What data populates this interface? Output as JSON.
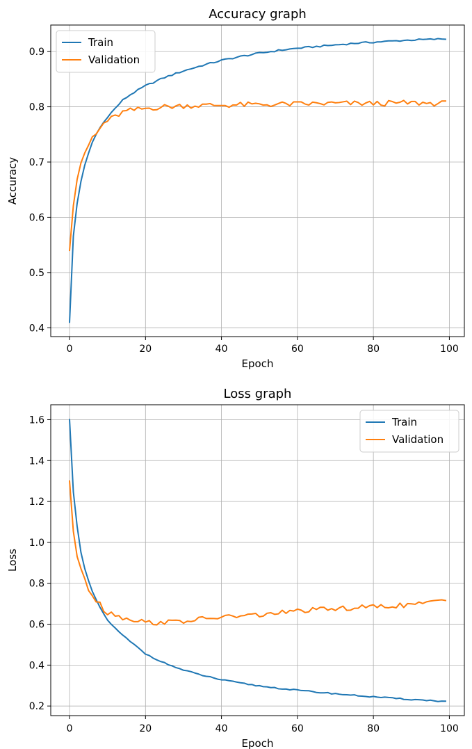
{
  "chart_data": [
    {
      "type": "line",
      "title": "Accuracy graph",
      "xlabel": "Epoch",
      "ylabel": "Accuracy",
      "xlim": [
        -4.95,
        103.95
      ],
      "ylim": [
        0.384,
        0.948
      ],
      "xticks": [
        0,
        20,
        40,
        60,
        80,
        100
      ],
      "yticks": [
        0.4,
        0.5,
        0.6,
        0.7,
        0.8,
        0.9
      ],
      "xtick_labels": [
        "0",
        "20",
        "40",
        "60",
        "80",
        "100"
      ],
      "ytick_labels": [
        "0.4",
        "0.5",
        "0.6",
        "0.7",
        "0.8",
        "0.9"
      ],
      "grid": true,
      "legend": "upper-left",
      "series": [
        {
          "name": "Train",
          "color": "#1f77b4",
          "anchors": [
            [
              0,
              0.41
            ],
            [
              1,
              0.565
            ],
            [
              2,
              0.625
            ],
            [
              3,
              0.665
            ],
            [
              4,
              0.695
            ],
            [
              5,
              0.715
            ],
            [
              6,
              0.735
            ],
            [
              7,
              0.75
            ],
            [
              8,
              0.762
            ],
            [
              9,
              0.772
            ],
            [
              10,
              0.782
            ],
            [
              12,
              0.797
            ],
            [
              14,
              0.812
            ],
            [
              16,
              0.822
            ],
            [
              18,
              0.83
            ],
            [
              20,
              0.838
            ],
            [
              25,
              0.853
            ],
            [
              30,
              0.865
            ],
            [
              35,
              0.875
            ],
            [
              40,
              0.884
            ],
            [
              45,
              0.891
            ],
            [
              50,
              0.897
            ],
            [
              55,
              0.902
            ],
            [
              60,
              0.906
            ],
            [
              65,
              0.909
            ],
            [
              70,
              0.912
            ],
            [
              75,
              0.915
            ],
            [
              80,
              0.917
            ],
            [
              85,
              0.919
            ],
            [
              90,
              0.921
            ],
            [
              95,
              0.922
            ],
            [
              99,
              0.923
            ]
          ],
          "noise": 0.0015
        },
        {
          "name": "Validation",
          "color": "#ff7f0e",
          "anchors": [
            [
              0,
              0.54
            ],
            [
              1,
              0.625
            ],
            [
              2,
              0.67
            ],
            [
              3,
              0.7
            ],
            [
              4,
              0.712
            ],
            [
              5,
              0.73
            ],
            [
              6,
              0.745
            ],
            [
              7,
              0.75
            ],
            [
              8,
              0.76
            ],
            [
              9,
              0.77
            ],
            [
              10,
              0.775
            ],
            [
              12,
              0.782
            ],
            [
              14,
              0.79
            ],
            [
              16,
              0.793
            ],
            [
              20,
              0.797
            ],
            [
              25,
              0.8
            ],
            [
              30,
              0.802
            ],
            [
              40,
              0.803
            ],
            [
              50,
              0.804
            ],
            [
              60,
              0.805
            ],
            [
              70,
              0.806
            ],
            [
              80,
              0.806
            ],
            [
              90,
              0.807
            ],
            [
              99,
              0.806
            ]
          ],
          "noise": 0.005
        }
      ]
    },
    {
      "type": "line",
      "title": "Loss graph",
      "xlabel": "Epoch",
      "ylabel": "Loss",
      "xlim": [
        -4.95,
        103.95
      ],
      "ylim": [
        0.153,
        1.673
      ],
      "xticks": [
        0,
        20,
        40,
        60,
        80,
        100
      ],
      "yticks": [
        0.2,
        0.4,
        0.6,
        0.8,
        1.0,
        1.2,
        1.4,
        1.6
      ],
      "xtick_labels": [
        "0",
        "20",
        "40",
        "60",
        "80",
        "100"
      ],
      "ytick_labels": [
        "0.2",
        "0.4",
        "0.6",
        "0.8",
        "1.0",
        "1.2",
        "1.4",
        "1.6"
      ],
      "grid": true,
      "legend": "upper-right",
      "series": [
        {
          "name": "Train",
          "color": "#1f77b4",
          "anchors": [
            [
              0,
              1.6
            ],
            [
              1,
              1.25
            ],
            [
              2,
              1.08
            ],
            [
              3,
              0.95
            ],
            [
              4,
              0.87
            ],
            [
              5,
              0.81
            ],
            [
              6,
              0.76
            ],
            [
              7,
              0.72
            ],
            [
              8,
              0.68
            ],
            [
              9,
              0.65
            ],
            [
              10,
              0.62
            ],
            [
              12,
              0.58
            ],
            [
              14,
              0.545
            ],
            [
              16,
              0.515
            ],
            [
              18,
              0.485
            ],
            [
              20,
              0.455
            ],
            [
              25,
              0.41
            ],
            [
              30,
              0.375
            ],
            [
              35,
              0.35
            ],
            [
              40,
              0.328
            ],
            [
              45,
              0.312
            ],
            [
              50,
              0.298
            ],
            [
              55,
              0.287
            ],
            [
              60,
              0.277
            ],
            [
              65,
              0.268
            ],
            [
              70,
              0.26
            ],
            [
              75,
              0.252
            ],
            [
              80,
              0.245
            ],
            [
              85,
              0.238
            ],
            [
              90,
              0.232
            ],
            [
              95,
              0.227
            ],
            [
              99,
              0.222
            ]
          ],
          "noise": 0.003
        },
        {
          "name": "Validation",
          "color": "#ff7f0e",
          "anchors": [
            [
              0,
              1.3
            ],
            [
              1,
              1.06
            ],
            [
              2,
              0.93
            ],
            [
              3,
              0.86
            ],
            [
              4,
              0.83
            ],
            [
              5,
              0.77
            ],
            [
              6,
              0.745
            ],
            [
              7,
              0.72
            ],
            [
              8,
              0.71
            ],
            [
              9,
              0.67
            ],
            [
              10,
              0.655
            ],
            [
              12,
              0.65
            ],
            [
              14,
              0.63
            ],
            [
              16,
              0.625
            ],
            [
              18,
              0.62
            ],
            [
              20,
              0.61
            ],
            [
              22,
              0.607
            ],
            [
              25,
              0.61
            ],
            [
              30,
              0.615
            ],
            [
              35,
              0.625
            ],
            [
              40,
              0.635
            ],
            [
              45,
              0.64
            ],
            [
              50,
              0.645
            ],
            [
              55,
              0.655
            ],
            [
              60,
              0.665
            ],
            [
              65,
              0.67
            ],
            [
              70,
              0.675
            ],
            [
              75,
              0.68
            ],
            [
              80,
              0.685
            ],
            [
              85,
              0.69
            ],
            [
              90,
              0.695
            ],
            [
              95,
              0.705
            ],
            [
              99,
              0.72
            ]
          ],
          "noise": 0.012
        }
      ]
    }
  ]
}
